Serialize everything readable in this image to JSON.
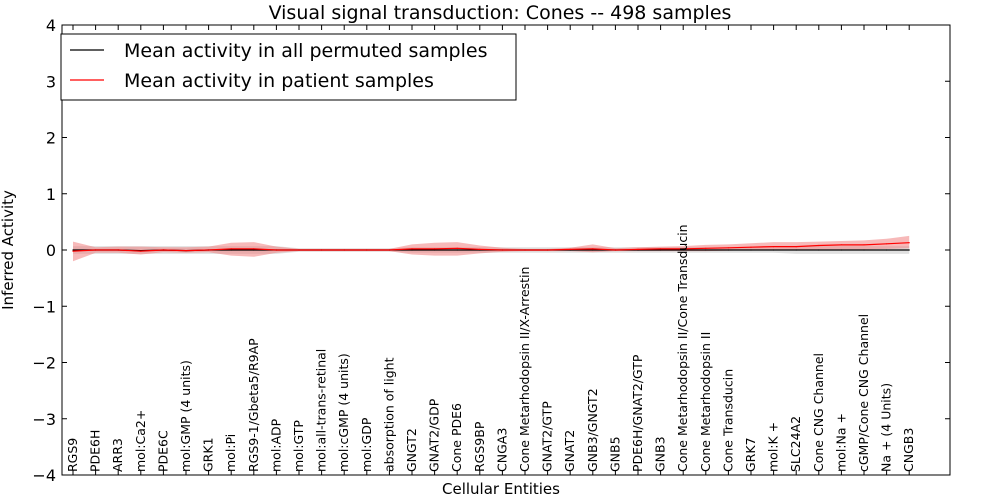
{
  "chart_data": {
    "type": "line",
    "title": "Visual signal transduction: Cones -- 498 samples",
    "xlabel": "Cellular Entities",
    "ylabel": "Inferred Activity",
    "ylim": [
      -4,
      4
    ],
    "yticks": [
      4,
      3,
      2,
      1,
      0,
      -1,
      -2,
      -3,
      -4
    ],
    "ytick_labels": [
      "4",
      "3",
      "2",
      "1",
      "0",
      "−1",
      "−2",
      "−3",
      "−4"
    ],
    "legend_position": "upper-left",
    "categories": [
      "RGS9",
      "PDE6H",
      "ARR3",
      "mol:Ca2+",
      "PDE6C",
      "mol:GMP (4 units)",
      "GRK1",
      "mol:Pi",
      "RGS9-1/Gbeta5/R9AP",
      "mol:ADP",
      "mol:GTP",
      "mol:all-trans-retinal",
      "mol:cGMP (4 units)",
      "mol:GDP",
      "absorption of light",
      "GNGT2",
      "GNAT2/GDP",
      "Cone PDE6",
      "RGS9BP",
      "CNGA3",
      "Cone Metarhodopsin II/X-Arrestin",
      "GNAT2/GTP",
      "GNAT2",
      "GNB3/GNGT2",
      "GNB5",
      "PDE6H/GNAT2/GTP",
      "GNB3",
      "Cone Metarhodopsin II/Cone Transducin",
      "Cone Metarhodopsin II",
      "Cone Transducin",
      "GRK7",
      "mol:K +",
      "SLC24A2",
      "Cone CNG Channel",
      "mol:Na +",
      "cGMP/Cone CNG Channel",
      "Na + (4 Units)",
      "CNGB3"
    ],
    "series": [
      {
        "name": "Mean activity in all permuted samples",
        "color": "#000000",
        "band_color": "#bbbbbb",
        "values": [
          0.0,
          0.0,
          0.0,
          -0.01,
          0.0,
          -0.01,
          0.0,
          0.0,
          0.0,
          0.0,
          0.0,
          0.0,
          0.0,
          0.0,
          0.0,
          0.0,
          0.0,
          0.0,
          0.0,
          0.0,
          0.0,
          0.0,
          0.0,
          0.0,
          0.0,
          0.0,
          0.0,
          0.0,
          0.0,
          0.0,
          0.0,
          0.0,
          0.0,
          0.0,
          0.0,
          0.0,
          0.0,
          0.0
        ],
        "lower": [
          -0.07,
          -0.07,
          -0.07,
          -0.07,
          -0.07,
          -0.07,
          -0.07,
          -0.07,
          -0.07,
          -0.07,
          -0.03,
          -0.03,
          -0.03,
          -0.03,
          -0.03,
          -0.05,
          -0.05,
          -0.05,
          -0.05,
          -0.05,
          -0.05,
          -0.05,
          -0.05,
          -0.05,
          -0.05,
          -0.05,
          -0.05,
          -0.05,
          -0.05,
          -0.05,
          -0.05,
          -0.05,
          -0.07,
          -0.07,
          -0.07,
          -0.07,
          -0.07,
          -0.07
        ],
        "upper": [
          0.07,
          0.07,
          0.07,
          0.07,
          0.07,
          0.07,
          0.07,
          0.07,
          0.07,
          0.07,
          0.03,
          0.03,
          0.03,
          0.03,
          0.03,
          0.05,
          0.05,
          0.05,
          0.05,
          0.05,
          0.05,
          0.05,
          0.05,
          0.05,
          0.05,
          0.05,
          0.05,
          0.05,
          0.05,
          0.05,
          0.05,
          0.05,
          0.07,
          0.07,
          0.07,
          0.07,
          0.07,
          0.07
        ]
      },
      {
        "name": "Mean activity in patient samples",
        "color": "#ff0000",
        "band_color": "#f08080",
        "values": [
          -0.02,
          0.0,
          0.0,
          -0.02,
          0.0,
          -0.01,
          0.0,
          0.02,
          0.02,
          0.0,
          0.0,
          0.0,
          0.0,
          0.0,
          0.0,
          0.02,
          0.02,
          0.03,
          0.01,
          0.0,
          0.0,
          0.0,
          0.01,
          0.02,
          0.0,
          0.01,
          0.02,
          0.02,
          0.03,
          0.04,
          0.05,
          0.06,
          0.06,
          0.08,
          0.09,
          0.09,
          0.11,
          0.13
        ],
        "lower": [
          -0.2,
          -0.05,
          -0.05,
          -0.08,
          -0.04,
          -0.05,
          -0.04,
          -0.1,
          -0.12,
          -0.05,
          -0.02,
          -0.02,
          -0.02,
          -0.02,
          -0.02,
          -0.08,
          -0.1,
          -0.1,
          -0.06,
          -0.03,
          -0.02,
          -0.02,
          -0.02,
          -0.04,
          -0.02,
          -0.02,
          -0.02,
          -0.02,
          -0.02,
          -0.01,
          0.0,
          0.0,
          0.0,
          0.01,
          0.01,
          0.01,
          0.02,
          0.03
        ],
        "upper": [
          0.15,
          0.05,
          0.06,
          0.06,
          0.05,
          0.05,
          0.06,
          0.13,
          0.14,
          0.06,
          0.02,
          0.02,
          0.02,
          0.02,
          0.02,
          0.1,
          0.13,
          0.14,
          0.08,
          0.04,
          0.02,
          0.02,
          0.04,
          0.1,
          0.03,
          0.05,
          0.06,
          0.07,
          0.09,
          0.1,
          0.12,
          0.14,
          0.14,
          0.15,
          0.16,
          0.17,
          0.2,
          0.25
        ]
      }
    ]
  }
}
